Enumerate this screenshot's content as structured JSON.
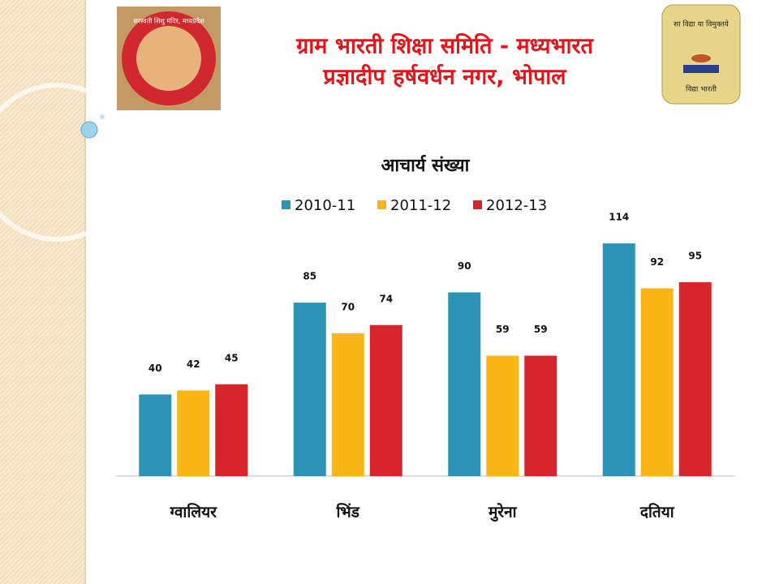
{
  "header": {
    "line1": "ग्राम भारती शिक्षा समिति - मध्यभारत",
    "line2": "प्रज्ञादीप हर्षवर्धन नगर, भोपाल",
    "left_logo": "सरस्वती शिशु मंदिर, मध्यप्रदेश",
    "right_logo_top": "सा विद्या या विमुक्तये",
    "right_logo_bottom": "विद्या भारती"
  },
  "chart_data": {
    "type": "bar",
    "title": "आचार्य संख्या",
    "categories": [
      "ग्वालियर",
      "भिंड",
      "मुरेना",
      "दतिया"
    ],
    "series": [
      {
        "name": "2010-11",
        "color": "#2b93b6",
        "values": [
          40,
          85,
          90,
          114
        ]
      },
      {
        "name": "2011-12",
        "color": "#fbb516",
        "values": [
          42,
          70,
          59,
          92
        ]
      },
      {
        "name": "2012-13",
        "color": "#d8252c",
        "values": [
          45,
          74,
          59,
          95
        ]
      }
    ],
    "ylim": [
      0,
      120
    ],
    "legend": "top"
  }
}
